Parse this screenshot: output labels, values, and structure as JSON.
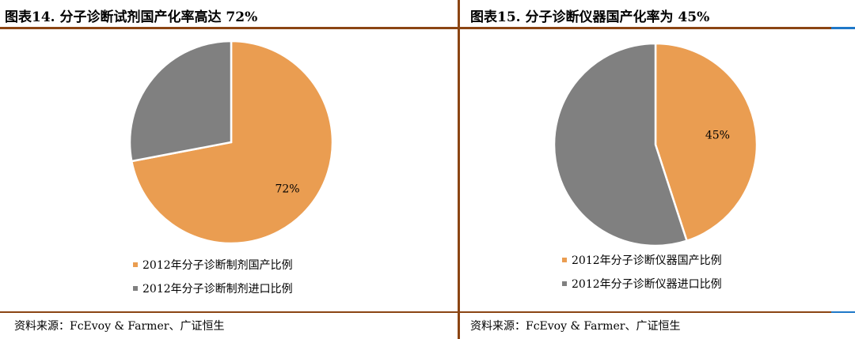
{
  "left": {
    "title": "图表14.  分子诊断试剂国产化率高达 72%",
    "source": "资料来源：FcEvoy & Farmer、广证恒生"
  },
  "right": {
    "title": "图表15.  分子诊断仪器国产化率为 45%",
    "source": "资料来源：FcEvoy & Farmer、广证恒生"
  },
  "chart_data": [
    {
      "type": "pie",
      "title": "图表14.  分子诊断试剂国产化率高达 72%",
      "start_angle_deg": 0,
      "direction": "clockwise",
      "slices": [
        {
          "label": "2012年分子诊断制剂国产比例",
          "value": 72,
          "color": "#EA9D51",
          "data_label": "72%"
        },
        {
          "label": "2012年分子诊断制剂进口比例",
          "value": 28,
          "color": "#808080",
          "data_label": ""
        }
      ],
      "legend": "bottom"
    },
    {
      "type": "pie",
      "title": "图表15.  分子诊断仪器国产化率为 45%",
      "start_angle_deg": 0,
      "direction": "clockwise",
      "slices": [
        {
          "label": "2012年分子诊断仪器国产比例",
          "value": 45,
          "color": "#EA9D51",
          "data_label": "45%"
        },
        {
          "label": "2012年分子诊断仪器进口比例",
          "value": 55,
          "color": "#808080",
          "data_label": ""
        }
      ],
      "legend": "bottom"
    }
  ]
}
